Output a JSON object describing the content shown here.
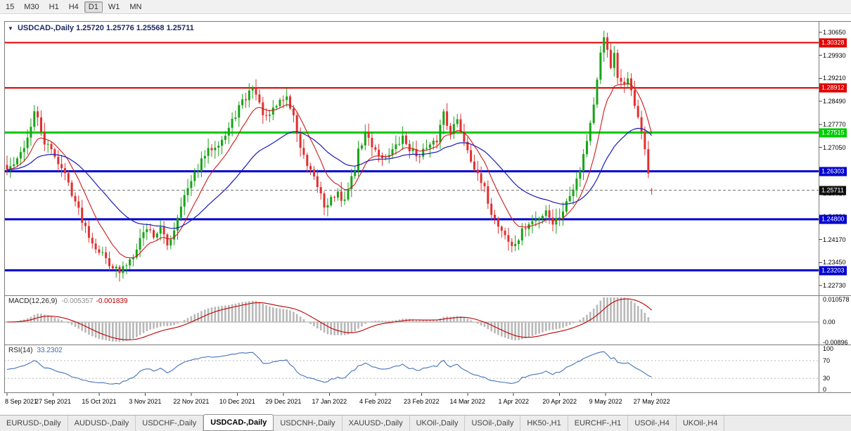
{
  "toolbar": {
    "timeframes": [
      {
        "label": "15",
        "active": false
      },
      {
        "label": "M30",
        "active": false
      },
      {
        "label": "H1",
        "active": false
      },
      {
        "label": "H4",
        "active": false
      },
      {
        "label": "D1",
        "active": true
      },
      {
        "label": "W1",
        "active": false
      },
      {
        "label": "MN",
        "active": false
      }
    ]
  },
  "chart": {
    "title": {
      "collapse_icon": "▼",
      "symbol": "USDCAD-,Daily",
      "ohlc": "1.25720 1.25776 1.25568 1.25711"
    },
    "price_axis": {
      "top_price": 1.3065,
      "bottom_price": 1.2273,
      "ticks": [
        "1.30650",
        "1.29930",
        "1.29210",
        "1.28490",
        "1.27770",
        "1.27050",
        "1.26330",
        "1.25610",
        "1.24890",
        "1.24170",
        "1.23450",
        "1.22730"
      ]
    },
    "hlines": [
      {
        "price": 1.30328,
        "label": "1.30328",
        "color": "#e00000",
        "width": 2
      },
      {
        "price": 1.28912,
        "label": "1.28912",
        "color": "#e00000",
        "width": 2
      },
      {
        "price": 1.27515,
        "label": "1.27515",
        "color": "#00cc00",
        "width": 3
      },
      {
        "price": 1.26303,
        "label": "1.26303",
        "color": "#0000d0",
        "width": 3
      },
      {
        "price": 1.248,
        "label": "1.24800",
        "color": "#0000d0",
        "width": 3
      },
      {
        "price": 1.23203,
        "label": "1.23203",
        "color": "#0000d0",
        "width": 3
      }
    ],
    "bid": {
      "price": 1.25711,
      "label": "1.25711",
      "color": "#101010"
    },
    "candle_colors": {
      "up": "#18a318",
      "down": "#e03030"
    },
    "ma": [
      {
        "period": 10,
        "color": "#cc1a1a"
      },
      {
        "period": 34,
        "color": "#1a1ab8"
      }
    ],
    "last_candle": {
      "o": 1.2572,
      "h": 1.25776,
      "l": 1.25568,
      "c": 1.25711
    },
    "price_path": [
      [
        0,
        1.2635
      ],
      [
        3,
        1.2662
      ],
      [
        6,
        1.2735
      ],
      [
        8,
        1.2815
      ],
      [
        9,
        1.279
      ],
      [
        11,
        1.272
      ],
      [
        14,
        1.268
      ],
      [
        17,
        1.262
      ],
      [
        19,
        1.2565
      ],
      [
        22,
        1.248
      ],
      [
        25,
        1.241
      ],
      [
        28,
        1.237
      ],
      [
        30,
        1.2345
      ],
      [
        33,
        1.2312
      ],
      [
        35,
        1.234
      ],
      [
        37,
        1.2372
      ],
      [
        39,
        1.242
      ],
      [
        41,
        1.2455
      ],
      [
        43,
        1.243
      ],
      [
        45,
        1.245
      ],
      [
        47,
        1.2398
      ],
      [
        49,
        1.245
      ],
      [
        51,
        1.253
      ],
      [
        54,
        1.2595
      ],
      [
        56,
        1.264
      ],
      [
        58,
        1.268
      ],
      [
        60,
        1.2705
      ],
      [
        62,
        1.2722
      ],
      [
        64,
        1.2742
      ],
      [
        66,
        1.2785
      ],
      [
        68,
        1.2832
      ],
      [
        70,
        1.2858
      ],
      [
        72,
        1.2898
      ],
      [
        73,
        1.287
      ],
      [
        74,
        1.2838
      ],
      [
        76,
        1.2792
      ],
      [
        78,
        1.282
      ],
      [
        80,
        1.2852
      ],
      [
        82,
        1.2862
      ],
      [
        84,
        1.28
      ],
      [
        86,
        1.2705
      ],
      [
        88,
        1.2642
      ],
      [
        90,
        1.2605
      ],
      [
        92,
        1.256
      ],
      [
        93,
        1.2522
      ],
      [
        95,
        1.2545
      ],
      [
        97,
        1.256
      ],
      [
        98,
        1.2528
      ],
      [
        100,
        1.2575
      ],
      [
        102,
        1.264
      ],
      [
        103,
        1.269
      ],
      [
        105,
        1.2748
      ],
      [
        107,
        1.2712
      ],
      [
        109,
        1.2688
      ],
      [
        110,
        1.2668
      ],
      [
        112,
        1.2688
      ],
      [
        114,
        1.2705
      ],
      [
        116,
        1.2735
      ],
      [
        118,
        1.2702
      ],
      [
        120,
        1.268
      ],
      [
        122,
        1.2695
      ],
      [
        124,
        1.2705
      ],
      [
        126,
        1.2728
      ],
      [
        128,
        1.2818
      ],
      [
        129,
        1.278
      ],
      [
        130,
        1.2758
      ],
      [
        132,
        1.2788
      ],
      [
        134,
        1.2728
      ],
      [
        136,
        1.2672
      ],
      [
        138,
        1.2612
      ],
      [
        140,
        1.2572
      ],
      [
        142,
        1.2502
      ],
      [
        144,
        1.2462
      ],
      [
        146,
        1.2432
      ],
      [
        148,
        1.2392
      ],
      [
        150,
        1.2418
      ],
      [
        151,
        1.2442
      ],
      [
        153,
        1.2465
      ],
      [
        155,
        1.2478
      ],
      [
        156,
        1.2482
      ],
      [
        158,
        1.2512
      ],
      [
        160,
        1.2468
      ],
      [
        162,
        1.2492
      ],
      [
        164,
        1.2532
      ],
      [
        166,
        1.2582
      ],
      [
        168,
        1.2642
      ],
      [
        169,
        1.2682
      ],
      [
        170,
        1.2732
      ],
      [
        171,
        1.2782
      ],
      [
        172,
        1.2842
      ],
      [
        173,
        1.2912
      ],
      [
        174,
        1.2992
      ],
      [
        175,
        1.3042
      ],
      [
        176,
        1.3012
      ],
      [
        177,
        1.2962
      ],
      [
        178,
        1.2992
      ],
      [
        179,
        1.2922
      ],
      [
        180,
        1.2902
      ],
      [
        181,
        1.2892
      ],
      [
        182,
        1.2922
      ],
      [
        183,
        1.2892
      ],
      [
        184,
        1.2832
      ],
      [
        185,
        1.2792
      ],
      [
        186,
        1.2762
      ],
      [
        187,
        1.2702
      ],
      [
        188,
        1.2622
      ],
      [
        189,
        1.25711
      ]
    ],
    "dates": [
      "8 Sep 2021",
      "27 Sep 2021",
      "15 Oct 2021",
      "3 Nov 2021",
      "22 Nov 2021",
      "10 Dec 2021",
      "29 Dec 2021",
      "17 Jan 2022",
      "4 Feb 2022",
      "23 Feb 2022",
      "14 Mar 2022",
      "1 Apr 2022",
      "20 Apr 2022",
      "9 May 2022",
      "27 May 2022"
    ]
  },
  "macd": {
    "label": "MACD(12,26,9)",
    "value_main": "-0.005357",
    "value_signal": "-0.001839",
    "axis": [
      "0.010578",
      "0.00",
      "-0.00896"
    ],
    "histogram_color": "#b8b8b8",
    "signal_color": "#c00000"
  },
  "rsi": {
    "label": "RSI(14)",
    "value": "33.2302",
    "axis": [
      "100",
      "70",
      "30",
      "0"
    ],
    "levels": [
      70,
      30
    ],
    "line_color": "#4472b8"
  },
  "tabs": [
    {
      "label": "EURUSD-,Daily",
      "active": false
    },
    {
      "label": "AUDUSD-,Daily",
      "active": false
    },
    {
      "label": "USDCHF-,Daily",
      "active": false
    },
    {
      "label": "USDCAD-,Daily",
      "active": true
    },
    {
      "label": "USDCNH-,Daily",
      "active": false
    },
    {
      "label": "XAUUSD-,Daily",
      "active": false
    },
    {
      "label": "UKOil-,Daily",
      "active": false
    },
    {
      "label": "USOil-,Daily",
      "active": false
    },
    {
      "label": "HK50-,H1",
      "active": false
    },
    {
      "label": "EURCHF-,H1",
      "active": false
    },
    {
      "label": "USOil-,H4",
      "active": false
    },
    {
      "label": "UKOil-,H4",
      "active": false
    }
  ]
}
